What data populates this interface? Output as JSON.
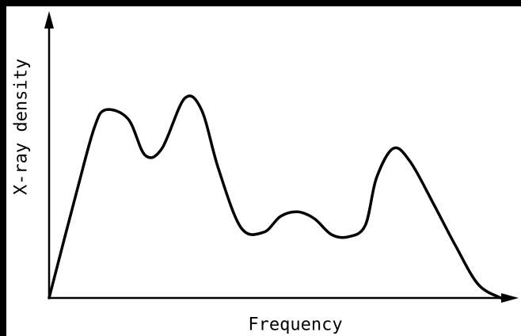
{
  "chart_data": {
    "type": "line",
    "title": "",
    "xlabel": "Frequency",
    "ylabel": "X-ray density",
    "grid": false,
    "legend": "none",
    "colors": {
      "line": "#000000",
      "axis": "#000000",
      "background": "#ffffff",
      "frame": "#000000"
    },
    "xlim": [
      0,
      1
    ],
    "ylim": [
      0,
      1
    ],
    "series": [
      {
        "values": [
          [
            0.0,
            0.0
          ],
          [
            0.05,
            0.48
          ],
          [
            0.08,
            0.75
          ],
          [
            0.1,
            0.83
          ],
          [
            0.14,
            0.79
          ],
          [
            0.17,
            0.63
          ],
          [
            0.2,
            0.66
          ],
          [
            0.24,
            0.88
          ],
          [
            0.27,
            0.83
          ],
          [
            0.3,
            0.57
          ],
          [
            0.34,
            0.31
          ],
          [
            0.38,
            0.29
          ],
          [
            0.41,
            0.36
          ],
          [
            0.44,
            0.38
          ],
          [
            0.47,
            0.35
          ],
          [
            0.5,
            0.28
          ],
          [
            0.53,
            0.27
          ],
          [
            0.56,
            0.32
          ],
          [
            0.58,
            0.53
          ],
          [
            0.61,
            0.66
          ],
          [
            0.64,
            0.6
          ],
          [
            0.68,
            0.42
          ],
          [
            0.72,
            0.23
          ],
          [
            0.76,
            0.06
          ],
          [
            0.8,
            0.0
          ]
        ]
      }
    ]
  }
}
